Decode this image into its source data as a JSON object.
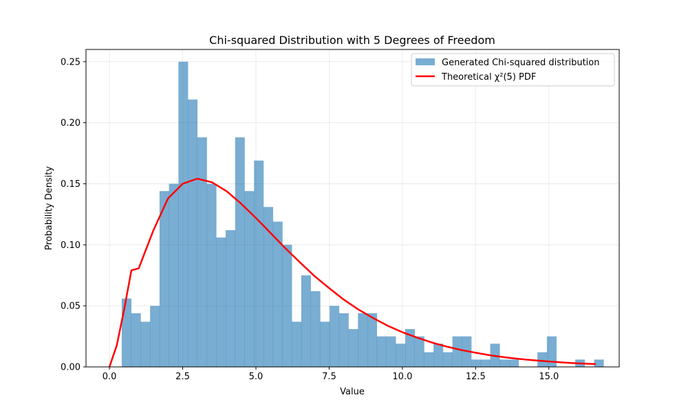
{
  "chart_data": {
    "type": "bar",
    "title": "Chi-squared Distribution with 5 Degrees of Freedom",
    "xlabel": "Value",
    "ylabel": "Probability Density",
    "xlim": [
      -0.8,
      17.4
    ],
    "ylim": [
      0,
      0.26
    ],
    "grid": true,
    "legend_position": "top-right",
    "xticks": [
      {
        "value": 0,
        "label": "0.0"
      },
      {
        "value": 2.5,
        "label": "2.5"
      },
      {
        "value": 5,
        "label": "5.0"
      },
      {
        "value": 7.5,
        "label": "7.5"
      },
      {
        "value": 10,
        "label": "10.0"
      },
      {
        "value": 12.5,
        "label": "12.5"
      },
      {
        "value": 15,
        "label": "15.0"
      }
    ],
    "yticks": [
      {
        "value": 0,
        "label": "0.00"
      },
      {
        "value": 0.05,
        "label": "0.05"
      },
      {
        "value": 0.1,
        "label": "0.10"
      },
      {
        "value": 0.15,
        "label": "0.15"
      },
      {
        "value": 0.2,
        "label": "0.20"
      },
      {
        "value": 0.25,
        "label": "0.25"
      }
    ],
    "histogram": {
      "name": "Generated Chi-squared distribution",
      "color": "#1f77b4",
      "opacity": 0.6,
      "bin_start": 0.42,
      "bin_width": 0.3225,
      "values": [
        0.056,
        0.044,
        0.037,
        0.05,
        0.144,
        0.15,
        0.25,
        0.219,
        0.188,
        0.15,
        0.106,
        0.112,
        0.188,
        0.144,
        0.169,
        0.131,
        0.119,
        0.1,
        0.037,
        0.075,
        0.062,
        0.037,
        0.05,
        0.044,
        0.031,
        0.044,
        0.044,
        0.025,
        0.025,
        0.019,
        0.031,
        0.025,
        0.012,
        0.019,
        0.012,
        0.025,
        0.025,
        0.006,
        0.006,
        0.019,
        0.006,
        0.006,
        0,
        0,
        0.012,
        0.025,
        0,
        0,
        0.006,
        0,
        0.006
      ]
    },
    "series": [
      {
        "name": "Theoretical χ²(5) PDF",
        "color": "#ff0000",
        "type": "line",
        "x": [
          0,
          0.25,
          0.5,
          0.75,
          1,
          1.5,
          2,
          2.5,
          3,
          3.5,
          4,
          4.5,
          5,
          5.5,
          6,
          6.5,
          7,
          7.5,
          8,
          8.5,
          9,
          9.5,
          10,
          10.5,
          11,
          11.5,
          12,
          12.5,
          13,
          13.5,
          14,
          14.5,
          15,
          15.5,
          16,
          16.6
        ],
        "y": [
          0,
          0.0176,
          0.0468,
          0.0791,
          0.0807,
          0.1118,
          0.138,
          0.15,
          0.1542,
          0.1512,
          0.1439,
          0.1336,
          0.122,
          0.1097,
          0.0973,
          0.0857,
          0.0744,
          0.0645,
          0.0551,
          0.047,
          0.04,
          0.0337,
          0.0284,
          0.024,
          0.02,
          0.0167,
          0.0139,
          0.0116,
          0.0095,
          0.0079,
          0.0065,
          0.0054,
          0.0044,
          0.0036,
          0.0029,
          0.0023
        ]
      }
    ]
  }
}
